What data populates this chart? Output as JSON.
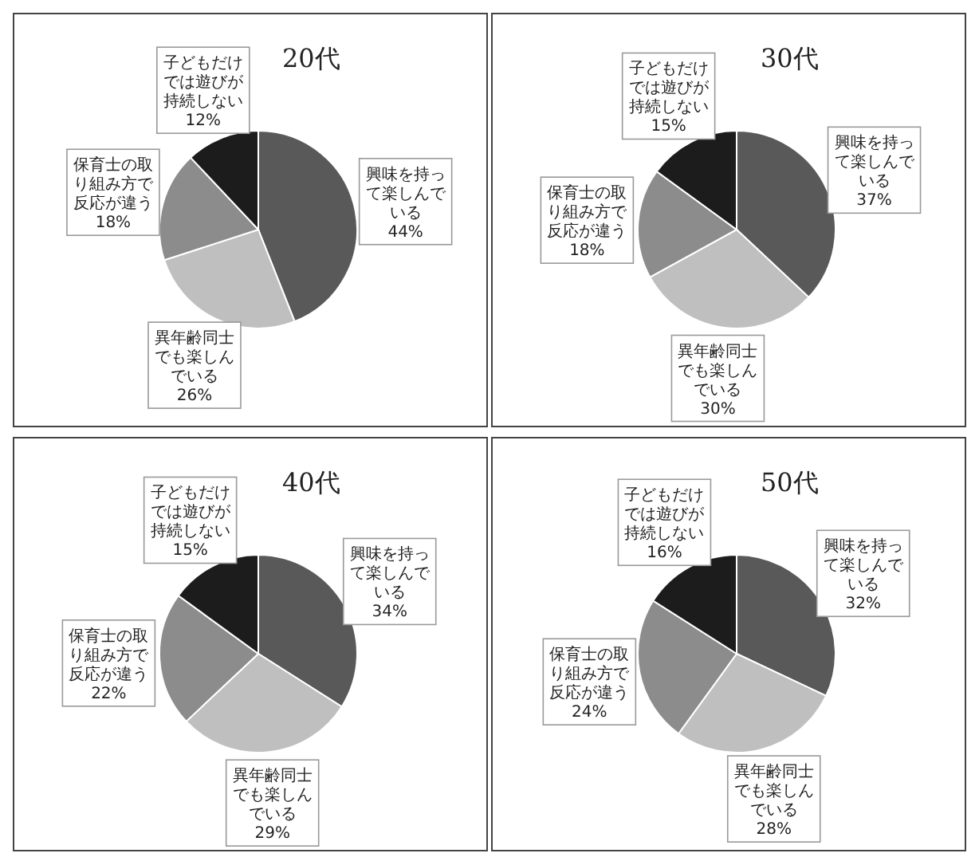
{
  "chart_data": [
    {
      "type": "pie",
      "title": "20代",
      "categories": [
        "興味を持って楽しんでいる",
        "異年齢同士でも楽しんでいる",
        "保育士の取り組み方で反応が違う",
        "子どもだけでは遊びが持続しない"
      ],
      "values": [
        44,
        26,
        18,
        12
      ],
      "value_labels": [
        "44%",
        "26%",
        "18%",
        "12%"
      ],
      "colors": [
        "#595959",
        "#bfbfbf",
        "#8c8c8c",
        "#1c1c1c"
      ]
    },
    {
      "type": "pie",
      "title": "30代",
      "categories": [
        "興味を持って楽しんでいる",
        "異年齢同士でも楽しんでいる",
        "保育士の取り組み方で反応が違う",
        "子どもだけでは遊びが持続しない"
      ],
      "values": [
        37,
        30,
        18,
        15
      ],
      "value_labels": [
        "37%",
        "30%",
        "18%",
        "15%"
      ],
      "colors": [
        "#595959",
        "#bfbfbf",
        "#8c8c8c",
        "#1c1c1c"
      ]
    },
    {
      "type": "pie",
      "title": "40代",
      "categories": [
        "興味を持って楽しんでいる",
        "異年齢同士でも楽しんでいる",
        "保育士の取り組み方で反応が違う",
        "子どもだけでは遊びが持続しない"
      ],
      "values": [
        34,
        29,
        22,
        15
      ],
      "value_labels": [
        "34%",
        "29%",
        "22%",
        "15%"
      ],
      "colors": [
        "#595959",
        "#bfbfbf",
        "#8c8c8c",
        "#1c1c1c"
      ]
    },
    {
      "type": "pie",
      "title": "50代",
      "categories": [
        "興味を持って楽しんでいる",
        "異年齢同士でも楽しんでいる",
        "保育士の取り組み方で反応が違う",
        "子どもだけでは遊びが持続しない"
      ],
      "values": [
        32,
        28,
        24,
        16
      ],
      "value_labels": [
        "32%",
        "28%",
        "24%",
        "16%"
      ],
      "colors": [
        "#595959",
        "#bfbfbf",
        "#8c8c8c",
        "#1c1c1c"
      ]
    }
  ]
}
